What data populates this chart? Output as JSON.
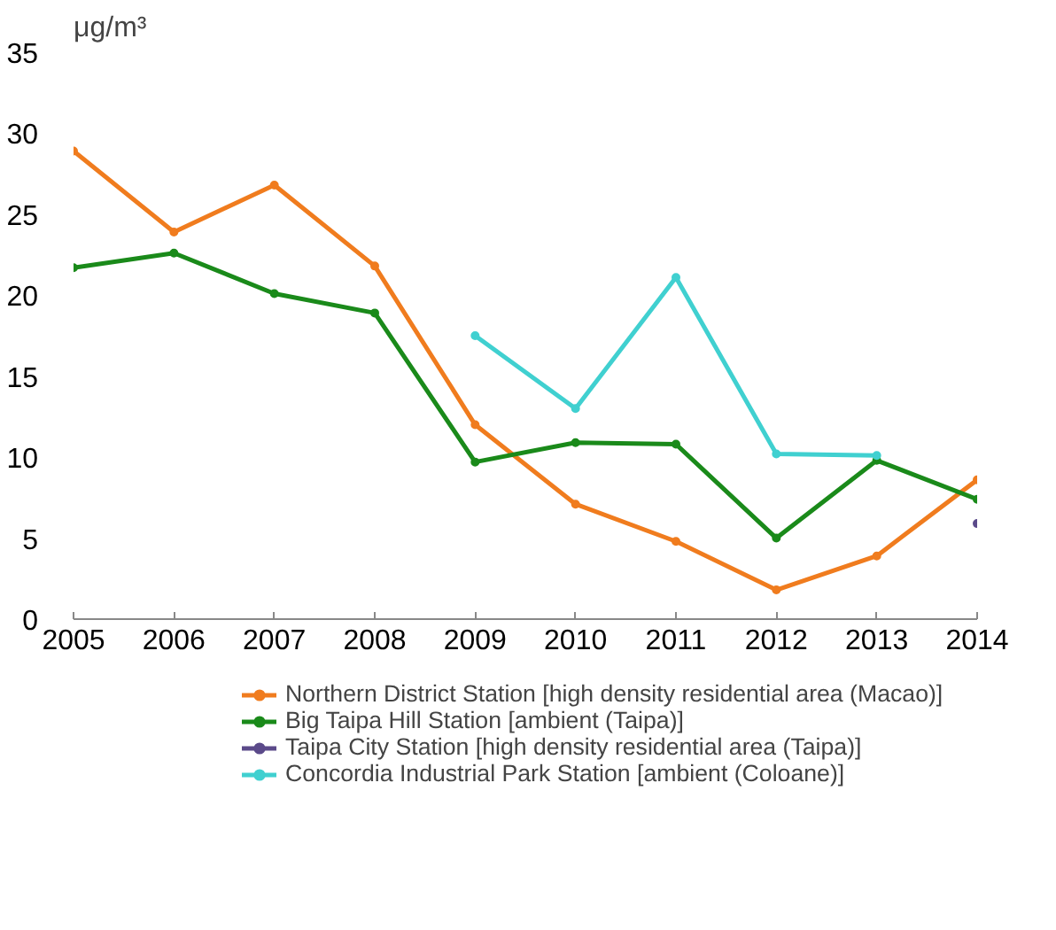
{
  "chart_data": {
    "type": "line",
    "ylabel": "μg/m³",
    "x": [
      2005,
      2006,
      2007,
      2008,
      2009,
      2010,
      2011,
      2012,
      2013,
      2014
    ],
    "xlim": [
      2005,
      2014
    ],
    "xticks": [
      2005,
      2006,
      2007,
      2008,
      2009,
      2010,
      2011,
      2012,
      2013,
      2014
    ],
    "ylim": [
      0,
      35
    ],
    "yticks": [
      0,
      5,
      10,
      15,
      20,
      25,
      30,
      35
    ],
    "grid": false,
    "legend": "bottom",
    "marker": "circle",
    "line_style": "solid",
    "series": [
      {
        "name": "Northern District Station [high density residential area (Macao)]",
        "color": "#f07c1e",
        "values": [
          28.9,
          23.9,
          26.8,
          21.8,
          12.0,
          7.1,
          4.8,
          1.8,
          3.9,
          8.6
        ]
      },
      {
        "name": "Big Taipa Hill Station [ambient (Taipa)]",
        "color": "#1a8a1a",
        "values": [
          21.7,
          22.6,
          20.1,
          18.9,
          9.7,
          10.9,
          10.8,
          5.0,
          9.8,
          7.4
        ]
      },
      {
        "name": "Taipa City Station [high density residential area (Taipa)]",
        "color": "#5b4a8a",
        "values": [
          null,
          null,
          null,
          null,
          null,
          null,
          null,
          null,
          null,
          5.9
        ]
      },
      {
        "name": "Concordia Industrial Park Station [ambient (Coloane)]",
        "color": "#40d0d0",
        "values": [
          null,
          null,
          null,
          null,
          17.5,
          13.0,
          21.1,
          10.2,
          10.1,
          null
        ]
      }
    ]
  }
}
